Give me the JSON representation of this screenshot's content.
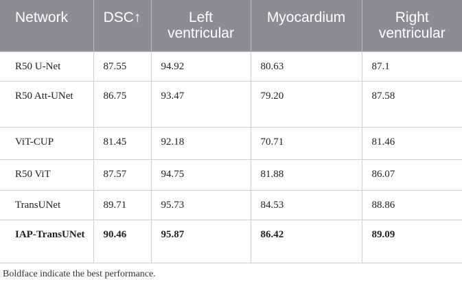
{
  "table": {
    "header": [
      "Network",
      "DSC↑",
      "Left ventricular",
      "Myocardium",
      "Right ventricular"
    ],
    "rows": [
      [
        "R50 U-Net",
        "87.55",
        "94.92",
        "80.63",
        "87.1"
      ],
      [
        "R50 Att-UNet",
        "86.75",
        "93.47",
        "79.20",
        "87.58"
      ],
      [
        "ViT-CUP",
        "81.45",
        "92.18",
        "70.71",
        "81.46"
      ],
      [
        "R50 ViT",
        "87.57",
        "94.75",
        "81.88",
        "86.07"
      ],
      [
        "TransUNet",
        "89.71",
        "95.73",
        "84.53",
        "88.86"
      ],
      [
        "IAP-TransUNet",
        "90.46",
        "95.87",
        "86.42",
        "89.09"
      ]
    ],
    "footnote": "Boldface indicate the best performance."
  }
}
